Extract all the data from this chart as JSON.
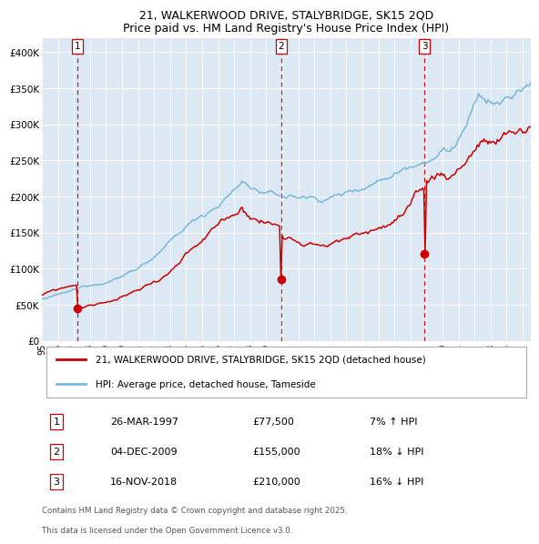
{
  "title": "21, WALKERWOOD DRIVE, STALYBRIDGE, SK15 2QD",
  "subtitle": "Price paid vs. HM Land Registry's House Price Index (HPI)",
  "bg_color": "#dce9f5",
  "hpi_color": "#7ab8d9",
  "price_color": "#cc0000",
  "marker_color": "#cc0000",
  "dashed_color": "#cc0000",
  "ylim": [
    0,
    420000
  ],
  "yticks": [
    0,
    50000,
    100000,
    150000,
    200000,
    250000,
    300000,
    350000,
    400000
  ],
  "ytick_labels": [
    "£0",
    "£50K",
    "£100K",
    "£150K",
    "£200K",
    "£250K",
    "£300K",
    "£350K",
    "£400K"
  ],
  "xlim_start": 1995.0,
  "xlim_end": 2025.5,
  "xtick_years": [
    1995,
    1996,
    1997,
    1998,
    1999,
    2000,
    2001,
    2002,
    2003,
    2004,
    2005,
    2006,
    2007,
    2008,
    2009,
    2010,
    2011,
    2012,
    2013,
    2014,
    2015,
    2016,
    2017,
    2018,
    2019,
    2020,
    2021,
    2022,
    2023,
    2024,
    2025
  ],
  "legend_entries": [
    "21, WALKERWOOD DRIVE, STALYBRIDGE, SK15 2QD (detached house)",
    "HPI: Average price, detached house, Tameside"
  ],
  "transactions": [
    {
      "label": "1",
      "date": "26-MAR-1997",
      "price": 77500,
      "pct": "7%",
      "dir": "↑",
      "year": 1997.23
    },
    {
      "label": "2",
      "date": "04-DEC-2009",
      "price": 155000,
      "pct": "18%",
      "dir": "↓",
      "year": 2009.92
    },
    {
      "label": "3",
      "date": "16-NOV-2018",
      "price": 210000,
      "pct": "16%",
      "dir": "↓",
      "year": 2018.88
    }
  ],
  "footer1": "Contains HM Land Registry data © Crown copyright and database right 2025.",
  "footer2": "This data is licensed under the Open Government Licence v3.0."
}
